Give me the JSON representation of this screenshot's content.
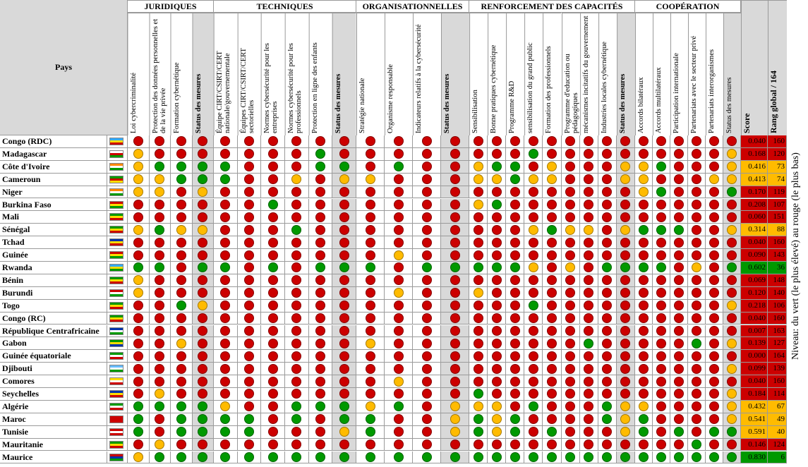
{
  "header": {
    "country": "Pays",
    "score": "Score",
    "rank": "Rang global / 164",
    "note": "Niveau: du vert (le plus élevé) au rouge (le plus bas)"
  },
  "groups": [
    {
      "title": "JURIDIQUES",
      "columns": [
        "Loi cybercriminalité",
        "Protection des données personnelles et de la vie privée",
        "Formation cybernétique",
        "Status des mesures"
      ]
    },
    {
      "title": "TECHNIQUES",
      "columns": [
        "Équipe CIRT/CSIRT/CERT nationale/gouvernementale",
        "Équipes CIRT/CSIRT/CERT sectorielles",
        "Normes cybersécurité pour les entreprises",
        "Normes cybersécurité pour les professionnels",
        "Protection en ligne des enfants",
        "Status des mesures"
      ]
    },
    {
      "title": "ORGANISATIONNELLES",
      "columns": [
        "Stratégie nationale",
        "Organisme responsable",
        "Indicateurs relatifs à la cybersécurité",
        "Status des mesures"
      ]
    },
    {
      "title": "RENFORCEMENT DES CAPACITÉS",
      "columns": [
        "Sensibilisation",
        "Bonne pratiques cybernétique",
        "Programme R&D",
        "sensibilisation du grand public",
        "Formation des professionnels",
        "Programme d'education ou pédagogiques",
        "mécanismes incitatifs du gouvernement",
        "Industries locales cybernétique",
        "Status des mesures"
      ]
    },
    {
      "title": "COOPÉRATION",
      "columns": [
        "Accords bilatéraux",
        "Accords multilatéraux",
        "Participation internationale",
        "Partenariats avec le secteur privé",
        "Partenariats interorganismes",
        "Status des mesures"
      ]
    }
  ],
  "rows": [
    {
      "country": "Congo (RDC)",
      "flag": [
        "#3af",
        "#fd0",
        "#c00"
      ],
      "score": "0.040",
      "rank": 160,
      "score_color": "#c00",
      "levels": [
        "#c00",
        "#c00",
        "#c00",
        "#c00",
        "#c00",
        "#c00",
        "#c00",
        "#c00",
        "#c00",
        "#c00",
        "#c00",
        "#c00",
        "#c00",
        "#c00",
        "#c00",
        "#c00",
        "#c00",
        "#c00",
        "#c00",
        "#c00",
        "#c00",
        "#c00",
        "#c00",
        "#c00",
        "#c00",
        "#c00",
        "#c00",
        "#c00",
        "#c00"
      ]
    },
    {
      "country": "Madagascar",
      "flag": [
        "#fff",
        "#c00",
        "#090"
      ],
      "score": "0.168",
      "rank": 120,
      "score_color": "#c00",
      "levels": [
        "#fb0",
        "#c00",
        "#c00",
        "#c00",
        "#c00",
        "#c00",
        "#c00",
        "#c00",
        "#090",
        "#c00",
        "#c00",
        "#c00",
        "#c00",
        "#c00",
        "#c00",
        "#c00",
        "#c00",
        "#090",
        "#c00",
        "#c00",
        "#c00",
        "#c00",
        "#c00",
        "#c00",
        "#c00",
        "#c00",
        "#c00",
        "#c00",
        "#fb0"
      ]
    },
    {
      "country": "Côte d'Ivoire",
      "flag": [
        "#f80",
        "#fff",
        "#090"
      ],
      "score": "0.416",
      "rank": 73,
      "score_color": "#fb0",
      "levels": [
        "#fb0",
        "#090",
        "#090",
        "#090",
        "#090",
        "#c00",
        "#c00",
        "#c00",
        "#090",
        "#090",
        "#c00",
        "#090",
        "#c00",
        "#c00",
        "#fb0",
        "#090",
        "#090",
        "#c00",
        "#fb0",
        "#c00",
        "#c00",
        "#c00",
        "#fb0",
        "#fb0",
        "#090",
        "#c00",
        "#c00",
        "#c00",
        "#fb0"
      ]
    },
    {
      "country": "Cameroun",
      "flag": [
        "#090",
        "#c00",
        "#fd0"
      ],
      "score": "0.413",
      "rank": 74,
      "score_color": "#fb0",
      "levels": [
        "#fb0",
        "#fb0",
        "#090",
        "#090",
        "#090",
        "#c00",
        "#c00",
        "#fb0",
        "#c00",
        "#fb0",
        "#fb0",
        "#c00",
        "#c00",
        "#c00",
        "#fb0",
        "#fb0",
        "#090",
        "#fb0",
        "#fb0",
        "#c00",
        "#c00",
        "#c00",
        "#fb0",
        "#fb0",
        "#c00",
        "#c00",
        "#c00",
        "#fb0",
        "#fb0"
      ]
    },
    {
      "country": "Niger",
      "flag": [
        "#f80",
        "#fff",
        "#090"
      ],
      "score": "0.170",
      "rank": 119,
      "score_color": "#c00",
      "levels": [
        "#fb0",
        "#fb0",
        "#c00",
        "#fb0",
        "#c00",
        "#c00",
        "#c00",
        "#c00",
        "#c00",
        "#c00",
        "#c00",
        "#c00",
        "#c00",
        "#c00",
        "#c00",
        "#c00",
        "#c00",
        "#c00",
        "#c00",
        "#c00",
        "#c00",
        "#c00",
        "#c00",
        "#fb0",
        "#090",
        "#c00",
        "#c00",
        "#c00",
        "#090"
      ]
    },
    {
      "country": "Burkina Faso",
      "flag": [
        "#c00",
        "#fd0",
        "#090"
      ],
      "score": "0.208",
      "rank": 107,
      "score_color": "#c00",
      "levels": [
        "#c00",
        "#c00",
        "#c00",
        "#c00",
        "#c00",
        "#c00",
        "#090",
        "#c00",
        "#c00",
        "#c00",
        "#c00",
        "#c00",
        "#c00",
        "#c00",
        "#fb0",
        "#090",
        "#c00",
        "#c00",
        "#c00",
        "#c00",
        "#c00",
        "#c00",
        "#c00",
        "#c00",
        "#c00",
        "#c00",
        "#c00",
        "#c00",
        "#c00"
      ]
    },
    {
      "country": "Mali",
      "flag": [
        "#090",
        "#fd0",
        "#c00"
      ],
      "score": "0.060",
      "rank": 151,
      "score_color": "#c00",
      "levels": [
        "#c00",
        "#c00",
        "#c00",
        "#c00",
        "#c00",
        "#c00",
        "#c00",
        "#c00",
        "#c00",
        "#c00",
        "#c00",
        "#c00",
        "#c00",
        "#c00",
        "#c00",
        "#c00",
        "#c00",
        "#c00",
        "#c00",
        "#c00",
        "#c00",
        "#c00",
        "#c00",
        "#c00",
        "#c00",
        "#c00",
        "#c00",
        "#c00",
        "#c00"
      ]
    },
    {
      "country": "Sénégal",
      "flag": [
        "#090",
        "#fd0",
        "#c00"
      ],
      "score": "0.314",
      "rank": 88,
      "score_color": "#fb0",
      "levels": [
        "#fb0",
        "#090",
        "#fb0",
        "#fb0",
        "#c00",
        "#c00",
        "#c00",
        "#090",
        "#c00",
        "#c00",
        "#c00",
        "#c00",
        "#c00",
        "#c00",
        "#c00",
        "#c00",
        "#c00",
        "#fb0",
        "#090",
        "#fb0",
        "#fb0",
        "#c00",
        "#fb0",
        "#090",
        "#090",
        "#090",
        "#c00",
        "#c00",
        "#fb0"
      ]
    },
    {
      "country": "Tchad",
      "flag": [
        "#03a",
        "#fd0",
        "#c00"
      ],
      "score": "0.040",
      "rank": 160,
      "score_color": "#c00",
      "levels": [
        "#c00",
        "#c00",
        "#c00",
        "#c00",
        "#c00",
        "#c00",
        "#c00",
        "#c00",
        "#c00",
        "#c00",
        "#c00",
        "#c00",
        "#c00",
        "#c00",
        "#c00",
        "#c00",
        "#c00",
        "#c00",
        "#c00",
        "#c00",
        "#c00",
        "#c00",
        "#c00",
        "#c00",
        "#c00",
        "#c00",
        "#c00",
        "#c00",
        "#c00"
      ]
    },
    {
      "country": "Guinée",
      "flag": [
        "#c00",
        "#fd0",
        "#090"
      ],
      "score": "0.090",
      "rank": 143,
      "score_color": "#c00",
      "levels": [
        "#c00",
        "#c00",
        "#c00",
        "#c00",
        "#c00",
        "#c00",
        "#c00",
        "#c00",
        "#c00",
        "#c00",
        "#c00",
        "#fb0",
        "#c00",
        "#c00",
        "#c00",
        "#c00",
        "#c00",
        "#c00",
        "#c00",
        "#c00",
        "#c00",
        "#c00",
        "#c00",
        "#c00",
        "#c00",
        "#c00",
        "#c00",
        "#c00",
        "#c00"
      ]
    },
    {
      "country": "Rwanda",
      "flag": [
        "#3af",
        "#fd0",
        "#090"
      ],
      "score": "0.602",
      "rank": 36,
      "score_color": "#090",
      "levels": [
        "#090",
        "#090",
        "#c00",
        "#090",
        "#090",
        "#c00",
        "#090",
        "#c00",
        "#090",
        "#090",
        "#090",
        "#c00",
        "#090",
        "#090",
        "#090",
        "#090",
        "#090",
        "#fb0",
        "#c00",
        "#fb0",
        "#c00",
        "#090",
        "#090",
        "#090",
        "#090",
        "#c00",
        "#fb0",
        "#c00",
        "#090"
      ]
    },
    {
      "country": "Bénin",
      "flag": [
        "#090",
        "#fd0",
        "#c00"
      ],
      "score": "0.069",
      "rank": 148,
      "score_color": "#c00",
      "levels": [
        "#fb0",
        "#c00",
        "#c00",
        "#c00",
        "#c00",
        "#c00",
        "#c00",
        "#c00",
        "#c00",
        "#c00",
        "#c00",
        "#c00",
        "#c00",
        "#c00",
        "#c00",
        "#c00",
        "#c00",
        "#c00",
        "#c00",
        "#c00",
        "#c00",
        "#c00",
        "#c00",
        "#c00",
        "#c00",
        "#c00",
        "#c00",
        "#c00",
        "#c00"
      ]
    },
    {
      "country": "Burundi",
      "flag": [
        "#c00",
        "#fff",
        "#090"
      ],
      "score": "0.120",
      "rank": 140,
      "score_color": "#c00",
      "levels": [
        "#fb0",
        "#c00",
        "#c00",
        "#c00",
        "#c00",
        "#c00",
        "#c00",
        "#c00",
        "#c00",
        "#c00",
        "#c00",
        "#fb0",
        "#c00",
        "#c00",
        "#fb0",
        "#c00",
        "#c00",
        "#c00",
        "#c00",
        "#c00",
        "#c00",
        "#c00",
        "#c00",
        "#c00",
        "#c00",
        "#c00",
        "#c00",
        "#c00",
        "#c00"
      ]
    },
    {
      "country": "Togo",
      "flag": [
        "#090",
        "#fd0",
        "#c00"
      ],
      "score": "0.218",
      "rank": 106,
      "score_color": "#c00",
      "levels": [
        "#c00",
        "#c00",
        "#090",
        "#fb0",
        "#c00",
        "#c00",
        "#c00",
        "#c00",
        "#c00",
        "#c00",
        "#c00",
        "#c00",
        "#c00",
        "#c00",
        "#c00",
        "#c00",
        "#c00",
        "#090",
        "#c00",
        "#c00",
        "#c00",
        "#c00",
        "#c00",
        "#c00",
        "#c00",
        "#c00",
        "#c00",
        "#c00",
        "#fb0"
      ]
    },
    {
      "country": "Congo (RC)",
      "flag": [
        "#090",
        "#fd0",
        "#c00"
      ],
      "score": "0.040",
      "rank": 160,
      "score_color": "#c00",
      "levels": [
        "#c00",
        "#c00",
        "#c00",
        "#c00",
        "#c00",
        "#c00",
        "#c00",
        "#c00",
        "#c00",
        "#c00",
        "#c00",
        "#c00",
        "#c00",
        "#c00",
        "#c00",
        "#c00",
        "#c00",
        "#c00",
        "#c00",
        "#c00",
        "#c00",
        "#c00",
        "#c00",
        "#c00",
        "#c00",
        "#c00",
        "#c00",
        "#c00",
        "#c00"
      ]
    },
    {
      "country": "République Centrafricaine",
      "flag": [
        "#03a",
        "#fff",
        "#090"
      ],
      "score": "0.007",
      "rank": 163,
      "score_color": "#c00",
      "levels": [
        "#c00",
        "#c00",
        "#c00",
        "#c00",
        "#c00",
        "#c00",
        "#c00",
        "#c00",
        "#c00",
        "#c00",
        "#c00",
        "#c00",
        "#c00",
        "#c00",
        "#c00",
        "#c00",
        "#c00",
        "#c00",
        "#c00",
        "#c00",
        "#c00",
        "#c00",
        "#c00",
        "#c00",
        "#c00",
        "#c00",
        "#c00",
        "#c00",
        "#c00"
      ]
    },
    {
      "country": "Gabon",
      "flag": [
        "#090",
        "#fd0",
        "#03a"
      ],
      "score": "0.139",
      "rank": 127,
      "score_color": "#c00",
      "levels": [
        "#c00",
        "#c00",
        "#fb0",
        "#c00",
        "#c00",
        "#c00",
        "#c00",
        "#c00",
        "#c00",
        "#c00",
        "#fb0",
        "#c00",
        "#c00",
        "#c00",
        "#c00",
        "#c00",
        "#c00",
        "#c00",
        "#c00",
        "#c00",
        "#090",
        "#c00",
        "#c00",
        "#c00",
        "#c00",
        "#c00",
        "#090",
        "#c00",
        "#fb0"
      ]
    },
    {
      "country": "Guinée équatoriale",
      "flag": [
        "#090",
        "#fff",
        "#c00"
      ],
      "score": "0.000",
      "rank": 164,
      "score_color": "#c00",
      "levels": [
        "#c00",
        "#c00",
        "#c00",
        "#c00",
        "#c00",
        "#c00",
        "#c00",
        "#c00",
        "#c00",
        "#c00",
        "#c00",
        "#c00",
        "#c00",
        "#c00",
        "#c00",
        "#c00",
        "#c00",
        "#c00",
        "#c00",
        "#c00",
        "#c00",
        "#c00",
        "#c00",
        "#c00",
        "#c00",
        "#c00",
        "#c00",
        "#c00",
        "#c00"
      ]
    },
    {
      "country": "Djibouti",
      "flag": [
        "#6bf",
        "#fff",
        "#090"
      ],
      "score": "0.099",
      "rank": 139,
      "score_color": "#c00",
      "levels": [
        "#c00",
        "#c00",
        "#c00",
        "#c00",
        "#c00",
        "#c00",
        "#c00",
        "#c00",
        "#c00",
        "#c00",
        "#c00",
        "#c00",
        "#c00",
        "#c00",
        "#c00",
        "#c00",
        "#c00",
        "#c00",
        "#c00",
        "#c00",
        "#c00",
        "#c00",
        "#c00",
        "#c00",
        "#c00",
        "#c00",
        "#c00",
        "#c00",
        "#fb0"
      ]
    },
    {
      "country": "Comores",
      "flag": [
        "#fd0",
        "#fff",
        "#c00"
      ],
      "score": "0.040",
      "rank": 160,
      "score_color": "#c00",
      "levels": [
        "#c00",
        "#c00",
        "#c00",
        "#c00",
        "#c00",
        "#c00",
        "#c00",
        "#c00",
        "#c00",
        "#c00",
        "#c00",
        "#fb0",
        "#c00",
        "#c00",
        "#c00",
        "#c00",
        "#c00",
        "#c00",
        "#c00",
        "#c00",
        "#c00",
        "#c00",
        "#c00",
        "#c00",
        "#c00",
        "#c00",
        "#c00",
        "#c00",
        "#c00"
      ]
    },
    {
      "country": "Seychelles",
      "flag": [
        "#03a",
        "#fd0",
        "#c00"
      ],
      "score": "0.184",
      "rank": 114,
      "score_color": "#c00",
      "levels": [
        "#c00",
        "#fb0",
        "#c00",
        "#c00",
        "#c00",
        "#c00",
        "#c00",
        "#c00",
        "#c00",
        "#c00",
        "#c00",
        "#c00",
        "#c00",
        "#c00",
        "#090",
        "#c00",
        "#c00",
        "#c00",
        "#c00",
        "#c00",
        "#c00",
        "#c00",
        "#c00",
        "#c00",
        "#c00",
        "#c00",
        "#c00",
        "#c00",
        "#fb0"
      ]
    },
    {
      "country": "Algérie",
      "flag": [
        "#090",
        "#fff",
        "#c00"
      ],
      "score": "0.432",
      "rank": 67,
      "score_color": "#fb0",
      "levels": [
        "#090",
        "#090",
        "#090",
        "#090",
        "#fb0",
        "#c00",
        "#c00",
        "#090",
        "#090",
        "#090",
        "#fb0",
        "#090",
        "#c00",
        "#fb0",
        "#fb0",
        "#fb0",
        "#c00",
        "#090",
        "#c00",
        "#c00",
        "#c00",
        "#090",
        "#fb0",
        "#fb0",
        "#c00",
        "#c00",
        "#c00",
        "#c00",
        "#fb0"
      ]
    },
    {
      "country": "Maroc",
      "flag": [
        "#c00",
        "#c00",
        "#c00"
      ],
      "score": "0.541",
      "rank": 49,
      "score_color": "#fb0",
      "levels": [
        "#090",
        "#c00",
        "#090",
        "#090",
        "#090",
        "#090",
        "#c00",
        "#090",
        "#c00",
        "#090",
        "#090",
        "#c00",
        "#c00",
        "#fb0",
        "#090",
        "#fb0",
        "#090",
        "#c00",
        "#c00",
        "#c00",
        "#c00",
        "#090",
        "#fb0",
        "#090",
        "#c00",
        "#c00",
        "#c00",
        "#c00",
        "#fb0"
      ]
    },
    {
      "country": "Tunisie",
      "flag": [
        "#c00",
        "#fff",
        "#c00"
      ],
      "score": "0.591",
      "rank": 40,
      "score_color": "#fb0",
      "levels": [
        "#090",
        "#c00",
        "#090",
        "#090",
        "#090",
        "#090",
        "#c00",
        "#c00",
        "#c00",
        "#fb0",
        "#090",
        "#c00",
        "#c00",
        "#fb0",
        "#090",
        "#fb0",
        "#090",
        "#c00",
        "#090",
        "#c00",
        "#c00",
        "#c00",
        "#fb0",
        "#090",
        "#c00",
        "#090",
        "#c00",
        "#090",
        "#090"
      ]
    },
    {
      "country": "Mauritanie",
      "flag": [
        "#090",
        "#fd0",
        "#c00"
      ],
      "score": "0.146",
      "rank": 124,
      "score_color": "#c00",
      "levels": [
        "#c00",
        "#fb0",
        "#c00",
        "#c00",
        "#c00",
        "#c00",
        "#c00",
        "#c00",
        "#c00",
        "#c00",
        "#c00",
        "#c00",
        "#c00",
        "#c00",
        "#c00",
        "#c00",
        "#c00",
        "#c00",
        "#c00",
        "#c00",
        "#c00",
        "#c00",
        "#c00",
        "#c00",
        "#c00",
        "#c00",
        "#090",
        "#c00",
        "#c00"
      ]
    },
    {
      "country": "Maurice",
      "flag": [
        "#c00",
        "#03a",
        "#090"
      ],
      "score": "0.830",
      "rank": 6,
      "score_color": "#090",
      "levels": [
        "#fb0",
        "#090",
        "#090",
        "#090",
        "#090",
        "#090",
        "#090",
        "#090",
        "#090",
        "#090",
        "#090",
        "#090",
        "#090",
        "#090",
        "#090",
        "#090",
        "#090",
        "#090",
        "#090",
        "#090",
        "#090",
        "#090",
        "#090",
        "#090",
        "#090",
        "#090",
        "#090",
        "#090",
        "#090"
      ]
    }
  ]
}
